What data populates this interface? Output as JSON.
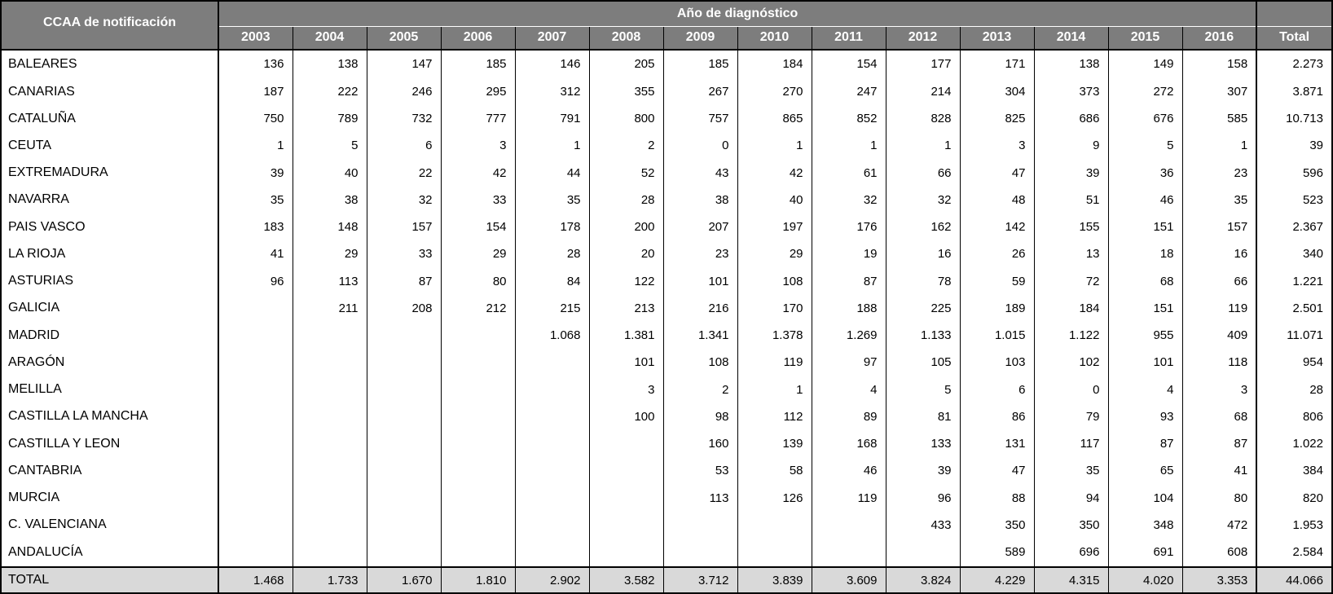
{
  "table": {
    "corner_header": "CCAA de notificación",
    "group_header": "Año de diagnóstico",
    "total_header": "Total",
    "year_columns": [
      "2003",
      "2004",
      "2005",
      "2006",
      "2007",
      "2008",
      "2009",
      "2010",
      "2011",
      "2012",
      "2013",
      "2014",
      "2015",
      "2016"
    ],
    "rows": [
      {
        "name": "BALEARES",
        "values": [
          "136",
          "138",
          "147",
          "185",
          "146",
          "205",
          "185",
          "184",
          "154",
          "177",
          "171",
          "138",
          "149",
          "158"
        ],
        "total": "2.273"
      },
      {
        "name": "CANARIAS",
        "values": [
          "187",
          "222",
          "246",
          "295",
          "312",
          "355",
          "267",
          "270",
          "247",
          "214",
          "304",
          "373",
          "272",
          "307"
        ],
        "total": "3.871"
      },
      {
        "name": "CATALUÑA",
        "values": [
          "750",
          "789",
          "732",
          "777",
          "791",
          "800",
          "757",
          "865",
          "852",
          "828",
          "825",
          "686",
          "676",
          "585"
        ],
        "total": "10.713"
      },
      {
        "name": "CEUTA",
        "values": [
          "1",
          "5",
          "6",
          "3",
          "1",
          "2",
          "0",
          "1",
          "1",
          "1",
          "3",
          "9",
          "5",
          "1"
        ],
        "total": "39"
      },
      {
        "name": "EXTREMADURA",
        "values": [
          "39",
          "40",
          "22",
          "42",
          "44",
          "52",
          "43",
          "42",
          "61",
          "66",
          "47",
          "39",
          "36",
          "23"
        ],
        "total": "596"
      },
      {
        "name": "NAVARRA",
        "values": [
          "35",
          "38",
          "32",
          "33",
          "35",
          "28",
          "38",
          "40",
          "32",
          "32",
          "48",
          "51",
          "46",
          "35"
        ],
        "total": "523"
      },
      {
        "name": "PAIS VASCO",
        "values": [
          "183",
          "148",
          "157",
          "154",
          "178",
          "200",
          "207",
          "197",
          "176",
          "162",
          "142",
          "155",
          "151",
          "157"
        ],
        "total": "2.367"
      },
      {
        "name": "LA RIOJA",
        "values": [
          "41",
          "29",
          "33",
          "29",
          "28",
          "20",
          "23",
          "29",
          "19",
          "16",
          "26",
          "13",
          "18",
          "16"
        ],
        "total": "340"
      },
      {
        "name": "ASTURIAS",
        "values": [
          "96",
          "113",
          "87",
          "80",
          "84",
          "122",
          "101",
          "108",
          "87",
          "78",
          "59",
          "72",
          "68",
          "66"
        ],
        "total": "1.221"
      },
      {
        "name": "GALICIA",
        "values": [
          "",
          "211",
          "208",
          "212",
          "215",
          "213",
          "216",
          "170",
          "188",
          "225",
          "189",
          "184",
          "151",
          "119"
        ],
        "total": "2.501"
      },
      {
        "name": "MADRID",
        "values": [
          "",
          "",
          "",
          "",
          "1.068",
          "1.381",
          "1.341",
          "1.378",
          "1.269",
          "1.133",
          "1.015",
          "1.122",
          "955",
          "409"
        ],
        "total": "11.071"
      },
      {
        "name": "ARAGÓN",
        "values": [
          "",
          "",
          "",
          "",
          "",
          "101",
          "108",
          "119",
          "97",
          "105",
          "103",
          "102",
          "101",
          "118"
        ],
        "total": "954"
      },
      {
        "name": "MELILLA",
        "values": [
          "",
          "",
          "",
          "",
          "",
          "3",
          "2",
          "1",
          "4",
          "5",
          "6",
          "0",
          "4",
          "3"
        ],
        "total": "28"
      },
      {
        "name": "CASTILLA LA MANCHA",
        "values": [
          "",
          "",
          "",
          "",
          "",
          "100",
          "98",
          "112",
          "89",
          "81",
          "86",
          "79",
          "93",
          "68"
        ],
        "total": "806"
      },
      {
        "name": "CASTILLA Y LEON",
        "values": [
          "",
          "",
          "",
          "",
          "",
          "",
          "160",
          "139",
          "168",
          "133",
          "131",
          "117",
          "87",
          "87"
        ],
        "total": "1.022"
      },
      {
        "name": "CANTABRIA",
        "values": [
          "",
          "",
          "",
          "",
          "",
          "",
          "53",
          "58",
          "46",
          "39",
          "47",
          "35",
          "65",
          "41"
        ],
        "total": "384"
      },
      {
        "name": "MURCIA",
        "values": [
          "",
          "",
          "",
          "",
          "",
          "",
          "113",
          "126",
          "119",
          "96",
          "88",
          "94",
          "104",
          "80"
        ],
        "total": "820"
      },
      {
        "name": "C. VALENCIANA",
        "values": [
          "",
          "",
          "",
          "",
          "",
          "",
          "",
          "",
          "",
          "433",
          "350",
          "350",
          "348",
          "472"
        ],
        "total": "1.953"
      },
      {
        "name": "ANDALUCÍA",
        "values": [
          "",
          "",
          "",
          "",
          "",
          "",
          "",
          "",
          "",
          "",
          "589",
          "696",
          "691",
          "608"
        ],
        "total": "2.584"
      }
    ],
    "total_row": {
      "label": "TOTAL",
      "values": [
        "1.468",
        "1.733",
        "1.670",
        "1.810",
        "2.902",
        "3.582",
        "3.712",
        "3.839",
        "3.609",
        "3.824",
        "4.229",
        "4.315",
        "4.020",
        "3.353"
      ],
      "total": "44.066"
    }
  },
  "colors": {
    "header_bg": "#7d7d7d",
    "header_text": "#ffffff",
    "total_row_bg": "#d9d9d9",
    "grid_border": "#000000",
    "body_bg": "#ffffff"
  }
}
